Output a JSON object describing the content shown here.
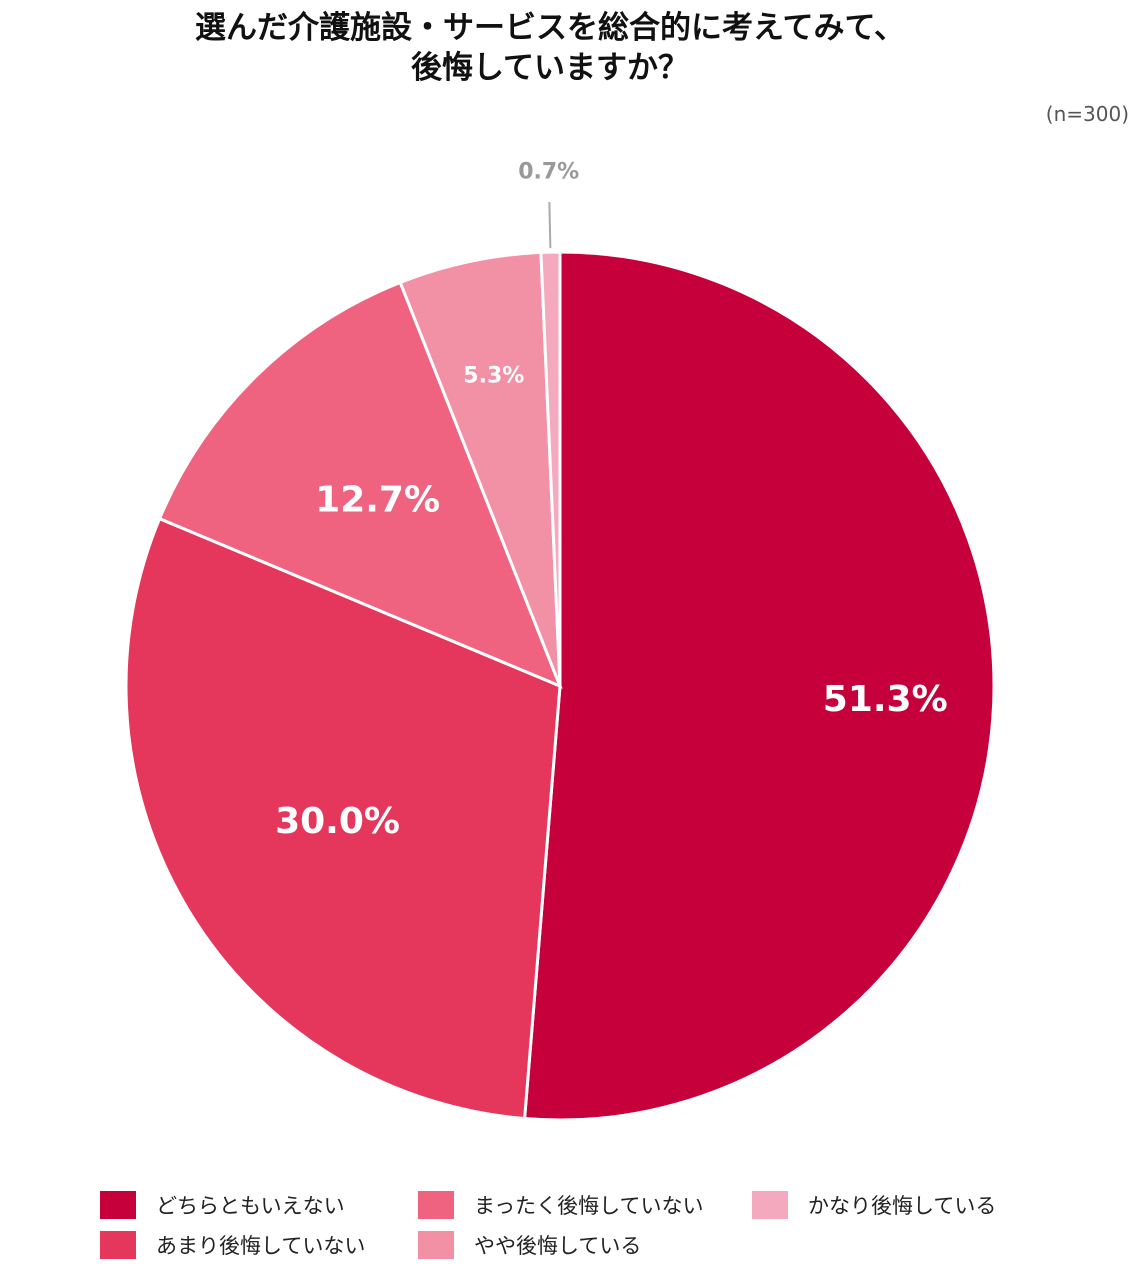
{
  "chart_data": {
    "type": "pie",
    "title_lines": [
      "選んだ介護施設・サービスを総合的に考えてみて、",
      "後悔していますか？"
    ],
    "sample_note": "(n=300)",
    "unit": "%",
    "start_angle_deg": 0,
    "direction": "clockwise",
    "legend_position": "bottom",
    "slices": [
      {
        "name": "どちらともいえない",
        "value": 51.3,
        "label": "51.3%",
        "color": "#C5003B",
        "label_color": "#ffffff",
        "label_size": "large"
      },
      {
        "name": "あまり後悔していない",
        "value": 30.0,
        "label": "30.0%",
        "color": "#E5375C",
        "label_color": "#ffffff",
        "label_size": "large"
      },
      {
        "name": "まったく後悔していない",
        "value": 12.7,
        "label": "12.7%",
        "color": "#EF6380",
        "label_color": "#ffffff",
        "label_size": "large"
      },
      {
        "name": "やや後悔している",
        "value": 5.3,
        "label": "5.3%",
        "color": "#F290A6",
        "label_color": "#ffffff",
        "label_size": "small"
      },
      {
        "name": "かなり後悔している",
        "value": 0.7,
        "label": "0.7%",
        "color": "#F5A9BE",
        "label_color": "#999999",
        "label_size": "small",
        "label_outside": true
      }
    ],
    "legend_order": [
      0,
      1,
      2,
      3,
      4
    ]
  }
}
